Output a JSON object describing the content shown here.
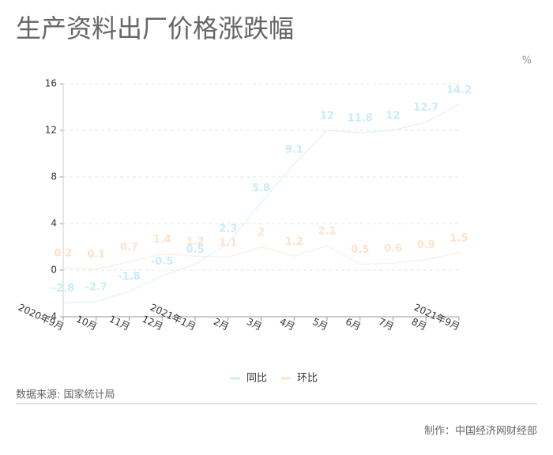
{
  "title": "生产资料出厂价格涨跌幅",
  "chart_data": {
    "type": "line",
    "unit": "%",
    "categories": [
      "2020年9月",
      "10月",
      "11月",
      "12月",
      "2021年1月",
      "2月",
      "3月",
      "4月",
      "5月",
      "6月",
      "7月",
      "8月",
      "2021年9月"
    ],
    "series": [
      {
        "name": "同比",
        "color": "#c9ecf9",
        "values": [
          -2.8,
          -2.7,
          -1.8,
          -0.5,
          0.5,
          2.3,
          5.8,
          9.1,
          12,
          11.8,
          12,
          12.7,
          14.2
        ]
      },
      {
        "name": "环比",
        "color": "#fde2cb",
        "values": [
          0.2,
          0.1,
          0.7,
          1.4,
          1.2,
          1.1,
          2,
          1.2,
          2.1,
          0.5,
          0.6,
          0.9,
          1.5
        ]
      }
    ],
    "ylim": [
      -4,
      16
    ],
    "yticks": [
      -4,
      0,
      4,
      8,
      12,
      16
    ],
    "grid": true
  },
  "source": "数据来源: 国家统计局",
  "credit": "制作：中国经济网财经部"
}
